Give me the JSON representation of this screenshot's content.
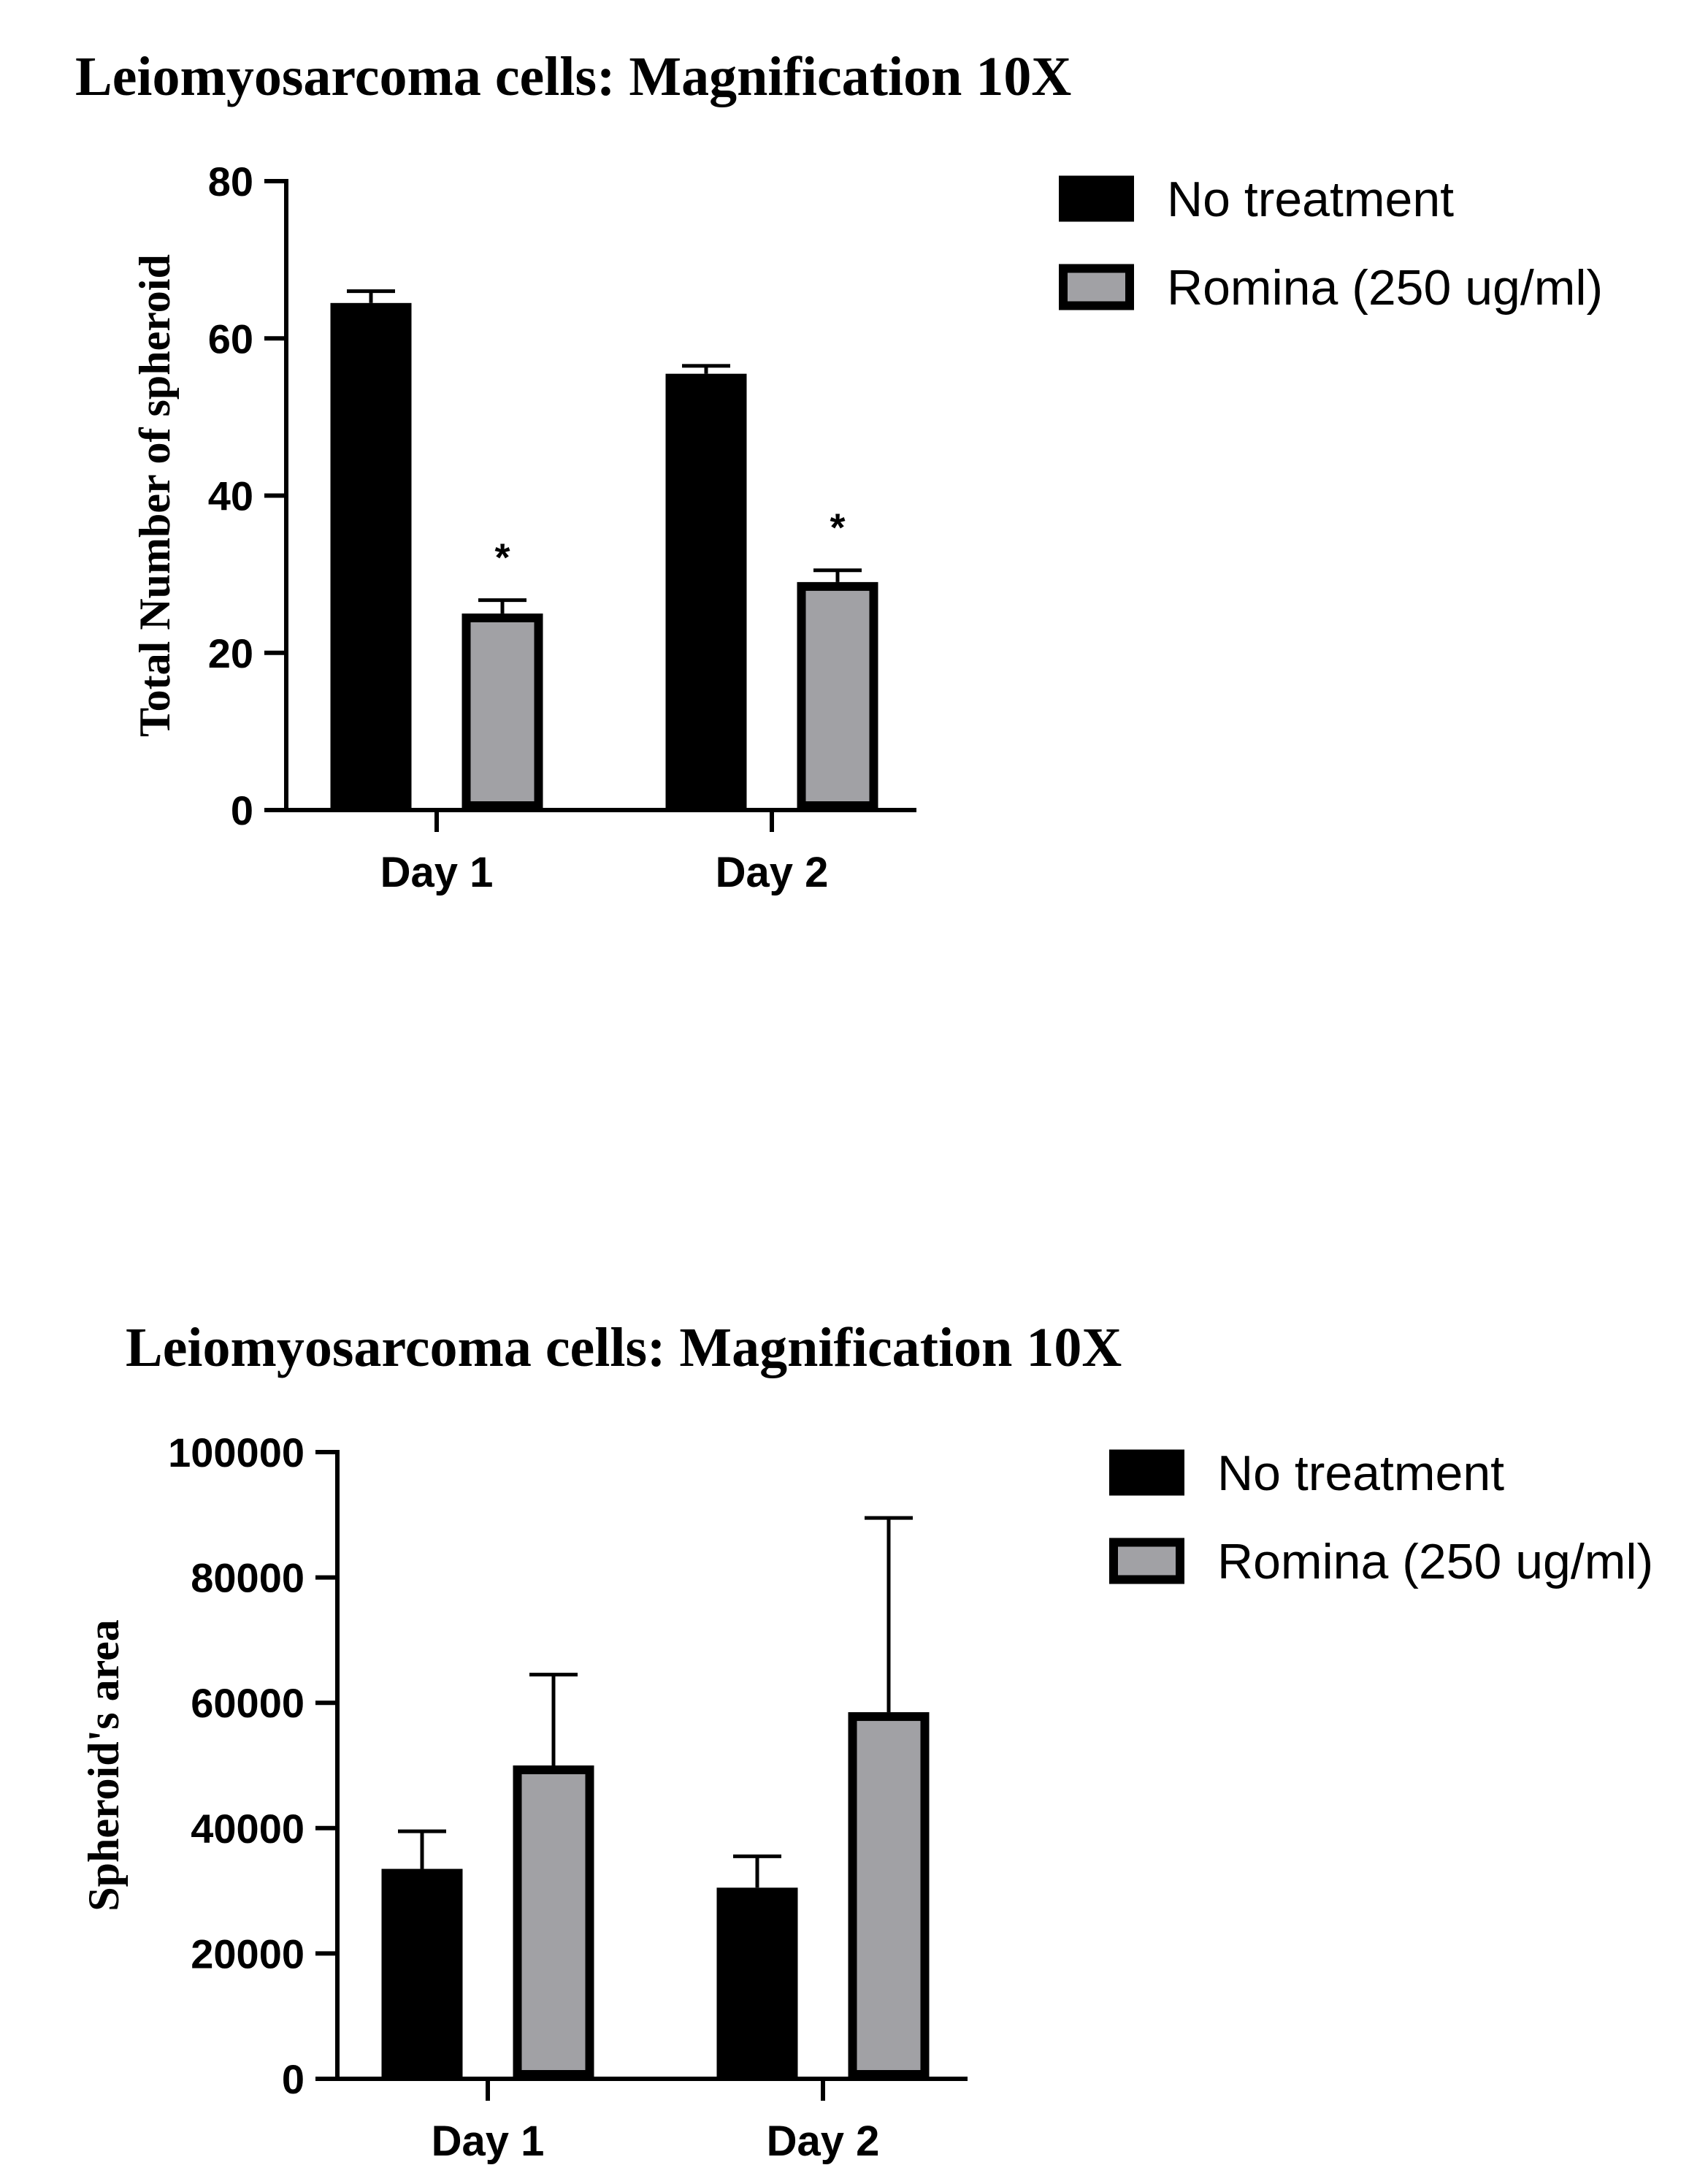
{
  "chart_data": [
    {
      "type": "bar",
      "title": "Leiomyosarcoma cells: Magnification 10X",
      "xlabel": "",
      "ylabel": "Total Number of spheroid",
      "categories": [
        "Day 1",
        "Day 2"
      ],
      "ylim": [
        0,
        80
      ],
      "yticks": [
        0,
        20,
        40,
        60,
        80
      ],
      "ytick_labels": [
        "0",
        "20",
        "40",
        "60",
        "80"
      ],
      "series": [
        {
          "name": "No treatment",
          "color": "#000000",
          "values": [
            64.5,
            55.5
          ],
          "errors": [
            1.5,
            1.0
          ],
          "annotations": [
            "",
            ""
          ]
        },
        {
          "name": "Romina (250 ug/ml)",
          "color": "#a1a1a5",
          "values": [
            25,
            29
          ],
          "errors": [
            1.7,
            1.5
          ],
          "annotations": [
            "*",
            "*"
          ]
        }
      ],
      "legend_position": "top-right",
      "grid": false
    },
    {
      "type": "bar",
      "title": "Leiomyosarcoma cells: Magnification 10X",
      "xlabel": "",
      "ylabel": "Spheroid's area",
      "categories": [
        "Day 1",
        "Day 2"
      ],
      "ylim": [
        0,
        100000
      ],
      "yticks": [
        0,
        20000,
        40000,
        60000,
        80000,
        100000
      ],
      "ytick_labels": [
        "0",
        "20000",
        "40000",
        "60000",
        "80000",
        "100000"
      ],
      "series": [
        {
          "name": "No treatment",
          "color": "#000000",
          "values": [
            33500,
            30500
          ],
          "errors": [
            6000,
            5000
          ],
          "annotations": [
            "",
            ""
          ]
        },
        {
          "name": "Romina (250 ug/ml)",
          "color": "#a1a1a5",
          "values": [
            50000,
            58500
          ],
          "errors": [
            14500,
            31000
          ],
          "annotations": [
            "",
            ""
          ]
        }
      ],
      "legend_position": "top-right",
      "grid": false
    }
  ]
}
